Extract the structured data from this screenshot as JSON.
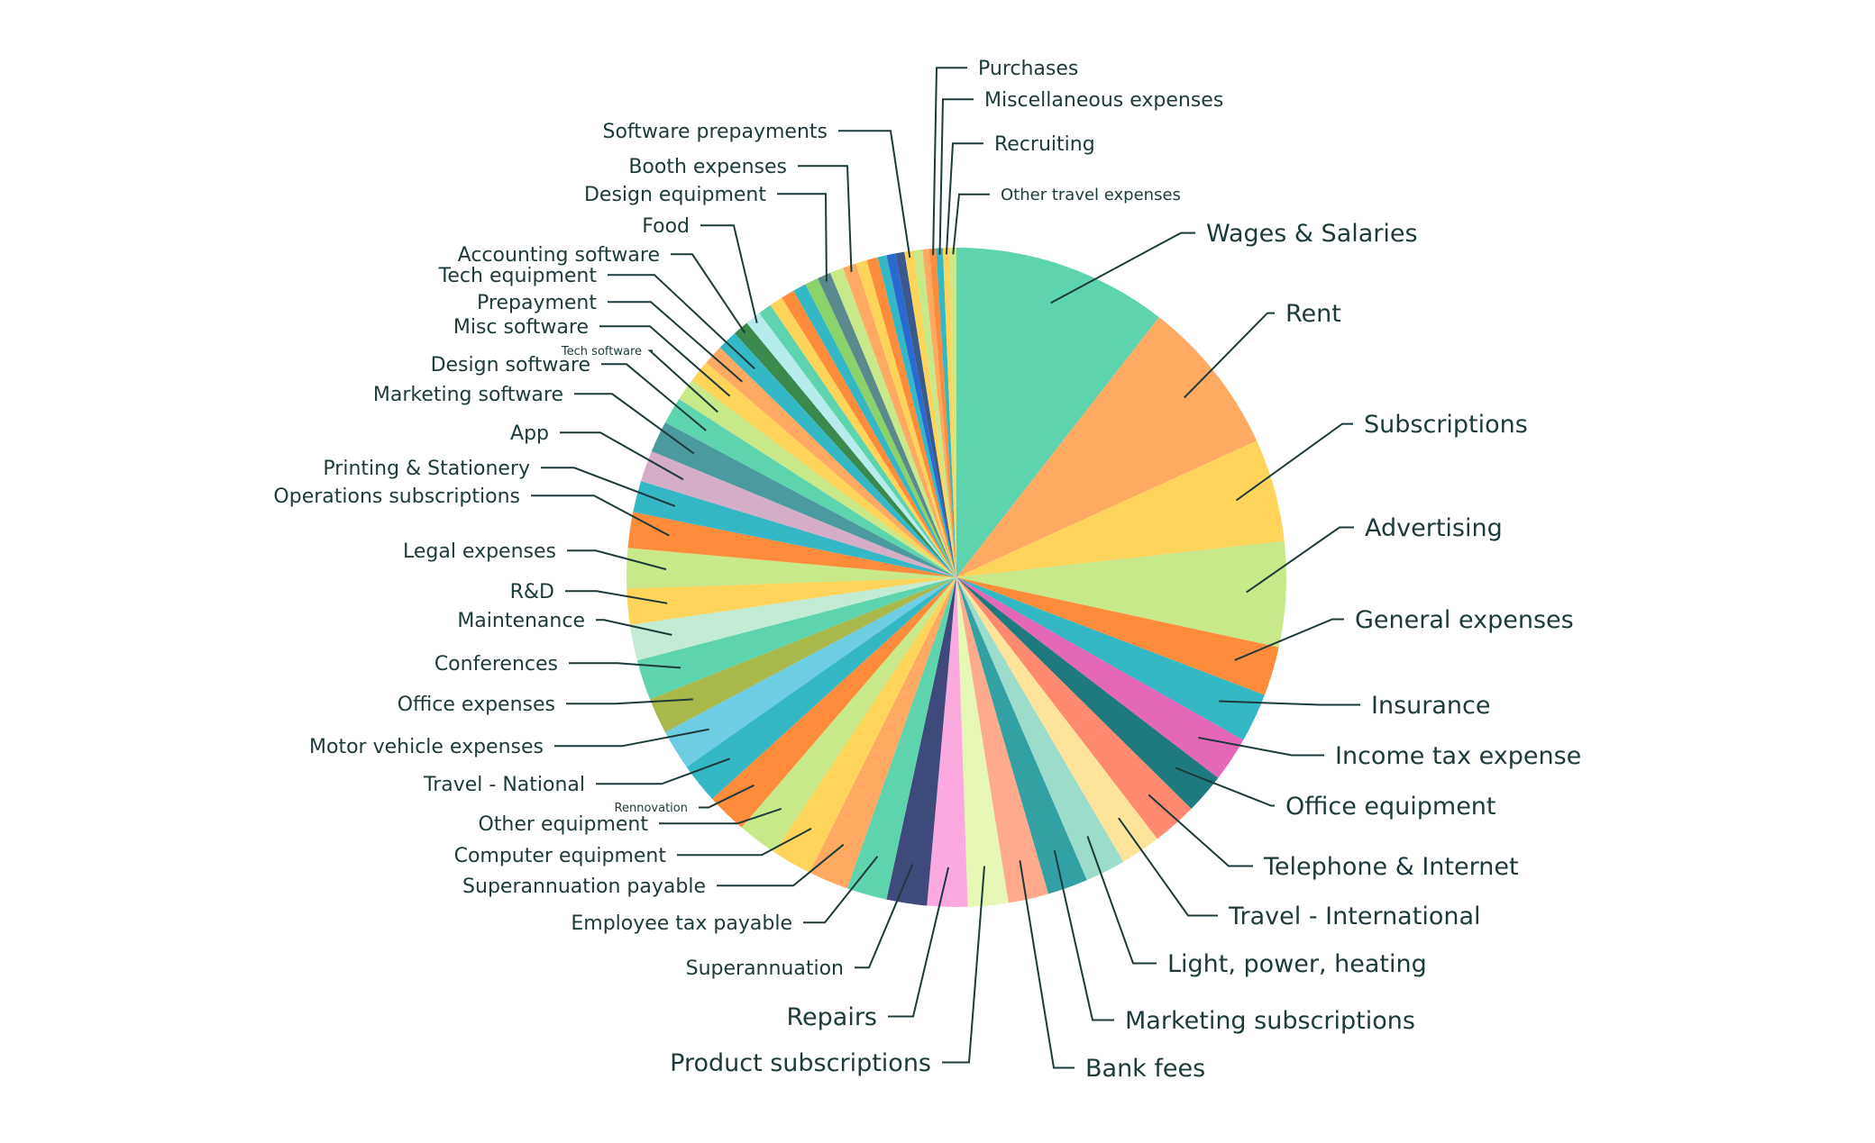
{
  "chart_data": {
    "type": "pie",
    "title": "",
    "start": "12 o'clock",
    "direction": "clockwise",
    "unit": "percent",
    "slices": [
      {
        "label": "Wages & Salaries",
        "value": 9.6,
        "color": "#5dd3ae"
      },
      {
        "label": "Rent",
        "value": 7.0,
        "color": "#ffa962"
      },
      {
        "label": "Subscriptions",
        "value": 4.6,
        "color": "#ffd45a"
      },
      {
        "label": "Advertising",
        "value": 4.7,
        "color": "#c8e98a"
      },
      {
        "label": "General expenses",
        "value": 2.2,
        "color": "#ff8c3a"
      },
      {
        "label": "Insurance",
        "value": 2.2,
        "color": "#34b8c6"
      },
      {
        "label": "Income tax expense",
        "value": 2.0,
        "color": "#e567b8"
      },
      {
        "label": "Office equipment",
        "value": 1.8,
        "color": "#1f7a7e"
      },
      {
        "label": "Telephone & Internet",
        "value": 2.0,
        "color": "#ff8a70"
      },
      {
        "label": "Travel - International",
        "value": 1.8,
        "color": "#fde49a"
      },
      {
        "label": "Light, power, heating",
        "value": 1.8,
        "color": "#9bdccb"
      },
      {
        "label": "Marketing subscriptions",
        "value": 1.8,
        "color": "#33a1a4"
      },
      {
        "label": "Bank fees",
        "value": 1.8,
        "color": "#ffaa8c"
      },
      {
        "label": "Product subscriptions",
        "value": 1.8,
        "color": "#e7f8b4"
      },
      {
        "label": "Repairs",
        "value": 1.8,
        "color": "#fba9de"
      },
      {
        "label": "Superannuation",
        "value": 1.8,
        "color": "#3d4a7a"
      },
      {
        "label": "Employee tax payable",
        "value": 1.8,
        "color": "#5dd3ae"
      },
      {
        "label": "Superannuation payable",
        "value": 1.8,
        "color": "#ffa962"
      },
      {
        "label": "Computer equipment",
        "value": 1.8,
        "color": "#ffd45a"
      },
      {
        "label": "Other equipment",
        "value": 1.8,
        "color": "#c8e98a"
      },
      {
        "label": "Rennovation",
        "value": 1.8,
        "color": "#ff8c3a"
      },
      {
        "label": "Travel - National",
        "value": 1.8,
        "color": "#34b8c6"
      },
      {
        "label": "Motor vehicle expenses",
        "value": 1.8,
        "color": "#6fcde3"
      },
      {
        "label": "Office expenses",
        "value": 1.6,
        "color": "#a8b84a"
      },
      {
        "label": "Conferences",
        "value": 1.8,
        "color": "#5dd3ae"
      },
      {
        "label": "Maintenance",
        "value": 1.6,
        "color": "#c2ecd3"
      },
      {
        "label": "R&D",
        "value": 1.6,
        "color": "#ffd45a"
      },
      {
        "label": "Legal expenses",
        "value": 1.8,
        "color": "#c8e98a"
      },
      {
        "label": "Operations subscriptions",
        "value": 1.6,
        "color": "#ff8c3a"
      },
      {
        "label": "Printing & Stationery",
        "value": 1.4,
        "color": "#34b8c6"
      },
      {
        "label": "App",
        "value": 1.4,
        "color": "#d3aec6"
      },
      {
        "label": "Marketing software",
        "value": 1.4,
        "color": "#4a9a9e"
      },
      {
        "label": "Design software",
        "value": 1.2,
        "color": "#5dd3ae"
      },
      {
        "label": "Tech software",
        "value": 1.0,
        "color": "#c8e98a"
      },
      {
        "label": "Misc software",
        "value": 1.0,
        "color": "#ffd45a"
      },
      {
        "label": "Prepayment",
        "value": 0.9,
        "color": "#ffa962"
      },
      {
        "label": "Tech equipment",
        "value": 0.9,
        "color": "#34b8c6"
      },
      {
        "label": "Accounting software",
        "value": 0.7,
        "color": "#3a8a4e"
      },
      {
        "label": "Food",
        "value": 0.7,
        "color": "#b6ecec"
      },
      {
        "label": "",
        "value": 0.6,
        "color": "#5dd3ae"
      },
      {
        "label": "",
        "value": 0.6,
        "color": "#ffd45a"
      },
      {
        "label": "",
        "value": 0.6,
        "color": "#ff8c3a"
      },
      {
        "label": "",
        "value": 0.6,
        "color": "#34b8c6"
      },
      {
        "label": "",
        "value": 0.6,
        "color": "#8ad36a"
      },
      {
        "label": "Design equipment",
        "value": 0.6,
        "color": "#5a8a8e"
      },
      {
        "label": "",
        "value": 0.6,
        "color": "#c8e98a"
      },
      {
        "label": "Booth expenses",
        "value": 0.6,
        "color": "#ffa962"
      },
      {
        "label": "",
        "value": 0.5,
        "color": "#ffd45a"
      },
      {
        "label": "",
        "value": 0.5,
        "color": "#ff8c3a"
      },
      {
        "label": "",
        "value": 0.4,
        "color": "#34b8c6"
      },
      {
        "label": "",
        "value": 0.4,
        "color": "#2a6ad0"
      },
      {
        "label": "",
        "value": 0.4,
        "color": "#3a5a8e"
      },
      {
        "label": "Software prepayments",
        "value": 0.4,
        "color": "#ffd45a"
      },
      {
        "label": "",
        "value": 0.4,
        "color": "#c8e98a"
      },
      {
        "label": "",
        "value": 0.3,
        "color": "#ffa962"
      },
      {
        "label": "Purchases",
        "value": 0.3,
        "color": "#ff8c3a"
      },
      {
        "label": "Miscellaneous expenses",
        "value": 0.3,
        "color": "#34b8c6"
      },
      {
        "label": "Recruiting",
        "value": 0.3,
        "color": "#ffd45a"
      },
      {
        "label": "Other travel expenses",
        "value": 0.3,
        "color": "#c8e98a"
      }
    ]
  }
}
